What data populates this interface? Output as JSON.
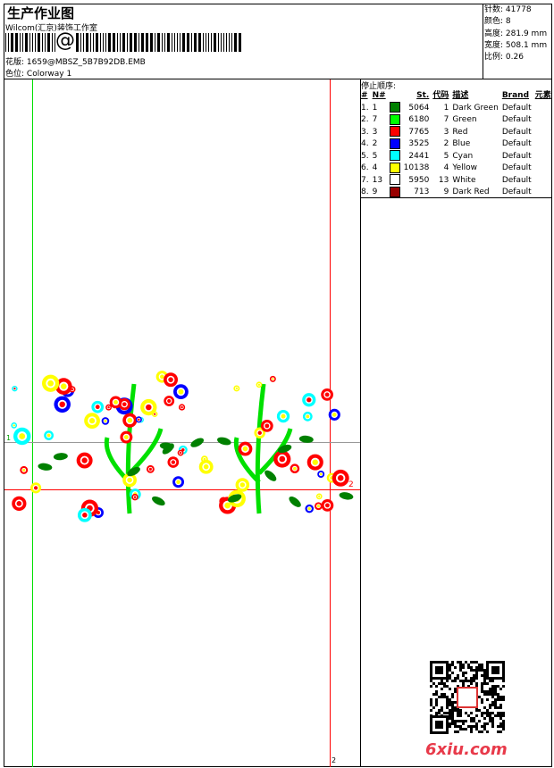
{
  "header": {
    "title": "生产作业图",
    "company": "Wilcom(汇京)装饰工作室",
    "barcode_symbol": "@",
    "design_label": "花版:",
    "design_value": "1659@MBSZ_5B7B92DB.EMB",
    "colorway_label": "色位:",
    "colorway_value": "Colorway 1"
  },
  "stats": [
    {
      "label": "针数:",
      "value": "41778"
    },
    {
      "label": "颜色:",
      "value": "8"
    },
    {
      "label": "高度:",
      "value": "281.9 mm"
    },
    {
      "label": "宽度:",
      "value": "508.1 mm"
    },
    {
      "label": "比例:",
      "value": "0.26"
    }
  ],
  "stop_sequence": {
    "title": "停止顺序:",
    "headers": [
      "#",
      "N#",
      "",
      "St.",
      "代码",
      "描述",
      "Brand",
      "元素"
    ],
    "rows": [
      {
        "seq": "1.",
        "n": "1",
        "color": "#008000",
        "st": "5064",
        "code": "1",
        "desc": "Dark Green",
        "brand": "Default"
      },
      {
        "seq": "2.",
        "n": "7",
        "color": "#00ff00",
        "st": "6180",
        "code": "7",
        "desc": "Green",
        "brand": "Default"
      },
      {
        "seq": "3.",
        "n": "3",
        "color": "#ff0000",
        "st": "7765",
        "code": "3",
        "desc": "Red",
        "brand": "Default"
      },
      {
        "seq": "4.",
        "n": "2",
        "color": "#0000ff",
        "st": "3525",
        "code": "2",
        "desc": "Blue",
        "brand": "Default"
      },
      {
        "seq": "5.",
        "n": "5",
        "color": "#00ffff",
        "st": "2441",
        "code": "5",
        "desc": "Cyan",
        "brand": "Default"
      },
      {
        "seq": "6.",
        "n": "4",
        "color": "#ffff00",
        "st": "10138",
        "code": "4",
        "desc": "Yellow",
        "brand": "Default"
      },
      {
        "seq": "7.",
        "n": "13",
        "color": "#ffffff",
        "st": "5950",
        "code": "13",
        "desc": "White",
        "brand": "Default"
      },
      {
        "seq": "8.",
        "n": "9",
        "color": "#990000",
        "st": "713",
        "code": "9",
        "desc": "Dark Red",
        "brand": "Default"
      }
    ]
  },
  "canvas": {
    "marker_1": "1",
    "marker_2": "2",
    "marker_2_bottom": "2"
  },
  "watermark": {
    "text": "6xiu.com"
  }
}
